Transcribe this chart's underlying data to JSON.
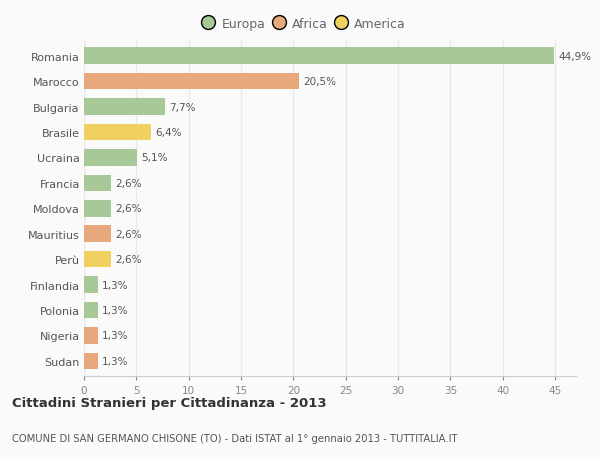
{
  "categories": [
    "Romania",
    "Marocco",
    "Bulgaria",
    "Brasile",
    "Ucraina",
    "Francia",
    "Moldova",
    "Mauritius",
    "Perù",
    "Finlandia",
    "Polonia",
    "Nigeria",
    "Sudan"
  ],
  "values": [
    44.9,
    20.5,
    7.7,
    6.4,
    5.1,
    2.6,
    2.6,
    2.6,
    2.6,
    1.3,
    1.3,
    1.3,
    1.3
  ],
  "labels": [
    "44,9%",
    "20,5%",
    "7,7%",
    "6,4%",
    "5,1%",
    "2,6%",
    "2,6%",
    "2,6%",
    "2,6%",
    "1,3%",
    "1,3%",
    "1,3%",
    "1,3%"
  ],
  "continent": [
    "Europa",
    "Africa",
    "Europa",
    "America",
    "Europa",
    "Europa",
    "Europa",
    "Africa",
    "America",
    "Europa",
    "Europa",
    "Africa",
    "Africa"
  ],
  "colors": {
    "Europa": "#a8c897",
    "Africa": "#e8a87c",
    "America": "#f0d060"
  },
  "xlim": [
    0,
    47
  ],
  "xticks": [
    0,
    5,
    10,
    15,
    20,
    25,
    30,
    35,
    40,
    45
  ],
  "title": "Cittadini Stranieri per Cittadinanza - 2013",
  "subtitle": "COMUNE DI SAN GERMANO CHISONE (TO) - Dati ISTAT al 1° gennaio 2013 - TUTTITALIA.IT",
  "background_color": "#fafafa",
  "grid_color": "#e8e8e8",
  "bar_height": 0.65
}
